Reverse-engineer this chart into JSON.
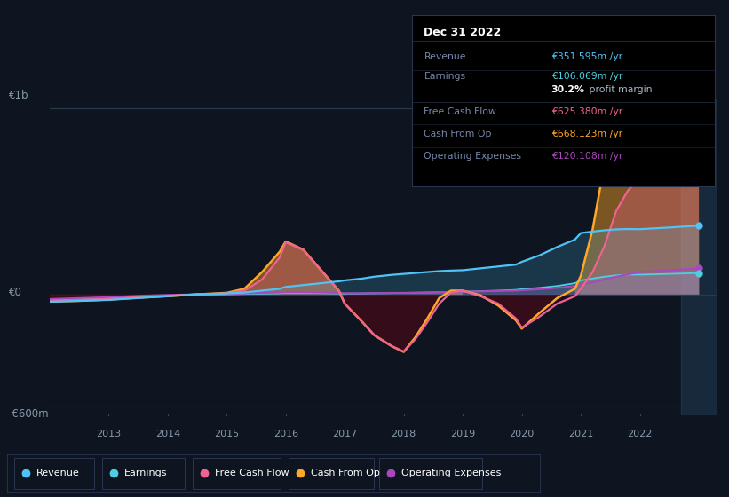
{
  "bg_color": "#0e1520",
  "plot_bg_color": "#0e1520",
  "info_box_bg": "#000000",
  "y1b_label": "€1b",
  "y0_label": "€0",
  "ym600_label": "-€600m",
  "info_box": {
    "title": "Dec 31 2022",
    "rows": [
      {
        "label": "Revenue",
        "value": "€351.595m /yr",
        "value_color": "#4fc3f7"
      },
      {
        "label": "Earnings",
        "value": "€106.069m /yr",
        "value_color": "#4dd0e1"
      },
      {
        "label": "",
        "prefix": "30.2%",
        "suffix": " profit margin"
      },
      {
        "label": "Free Cash Flow",
        "value": "€625.380m /yr",
        "value_color": "#f06292"
      },
      {
        "label": "Cash From Op",
        "value": "€668.123m /yr",
        "value_color": "#ffa726"
      },
      {
        "label": "Operating Expenses",
        "value": "€120.108m /yr",
        "value_color": "#ab47bc"
      }
    ]
  },
  "legend": [
    {
      "label": "Revenue",
      "color": "#4fc3f7"
    },
    {
      "label": "Earnings",
      "color": "#4dd0e1"
    },
    {
      "label": "Free Cash Flow",
      "color": "#f06292"
    },
    {
      "label": "Cash From Op",
      "color": "#ffa726"
    },
    {
      "label": "Operating Expenses",
      "color": "#ab47bc"
    }
  ],
  "colors": {
    "revenue": "#4fc3f7",
    "earnings": "#4dd0e1",
    "free_cf": "#f06292",
    "cash_op": "#ffa726",
    "op_exp": "#ab47bc"
  },
  "series": {
    "x": [
      2012.0,
      2012.5,
      2013.0,
      2013.5,
      2014.0,
      2014.5,
      2015.0,
      2015.3,
      2015.6,
      2015.9,
      2016.0,
      2016.3,
      2016.6,
      2016.9,
      2017.0,
      2017.3,
      2017.5,
      2017.8,
      2018.0,
      2018.2,
      2018.4,
      2018.6,
      2018.8,
      2019.0,
      2019.3,
      2019.6,
      2019.9,
      2020.0,
      2020.3,
      2020.6,
      2020.9,
      2021.0,
      2021.2,
      2021.4,
      2021.6,
      2021.8,
      2022.0,
      2022.5,
      2023.0
    ],
    "revenue": [
      -40,
      -35,
      -30,
      -20,
      -10,
      0,
      5,
      10,
      20,
      30,
      40,
      50,
      60,
      70,
      75,
      85,
      95,
      105,
      110,
      115,
      120,
      125,
      128,
      130,
      140,
      150,
      160,
      175,
      210,
      255,
      295,
      330,
      338,
      345,
      350,
      352,
      351,
      360,
      370
    ],
    "earnings": [
      -30,
      -25,
      -20,
      -15,
      -8,
      -3,
      0,
      2,
      4,
      6,
      8,
      8,
      7,
      5,
      4,
      5,
      6,
      7,
      8,
      9,
      10,
      11,
      12,
      14,
      17,
      20,
      24,
      28,
      35,
      45,
      60,
      75,
      85,
      95,
      102,
      106,
      106,
      110,
      115
    ],
    "free_cf": [
      -35,
      -30,
      -25,
      -15,
      -8,
      0,
      5,
      20,
      80,
      200,
      280,
      240,
      130,
      20,
      -50,
      -150,
      -220,
      -280,
      -310,
      -240,
      -150,
      -50,
      10,
      20,
      -10,
      -50,
      -130,
      -180,
      -120,
      -50,
      -10,
      30,
      120,
      260,
      450,
      560,
      625,
      650,
      670
    ],
    "cash_op": [
      -38,
      -35,
      -28,
      -18,
      -10,
      0,
      8,
      30,
      120,
      230,
      285,
      240,
      130,
      20,
      -50,
      -150,
      -220,
      -280,
      -310,
      -230,
      -130,
      -20,
      20,
      20,
      -5,
      -60,
      -140,
      -185,
      -100,
      -20,
      30,
      100,
      350,
      700,
      900,
      750,
      668,
      700,
      720
    ],
    "op_exp": [
      -25,
      -20,
      -15,
      -8,
      -3,
      0,
      3,
      5,
      8,
      10,
      12,
      12,
      10,
      8,
      6,
      6,
      7,
      8,
      8,
      9,
      10,
      11,
      12,
      14,
      16,
      18,
      20,
      22,
      28,
      35,
      45,
      55,
      65,
      80,
      95,
      108,
      120,
      130,
      140
    ]
  },
  "ylim": [
    -650,
    1050
  ],
  "xlim": [
    2012.0,
    2023.3
  ],
  "highlight_x": 2022.7,
  "grid_lines": [
    1000,
    0,
    -600
  ],
  "text_color": "#8899aa",
  "label_color": "#6677aa"
}
